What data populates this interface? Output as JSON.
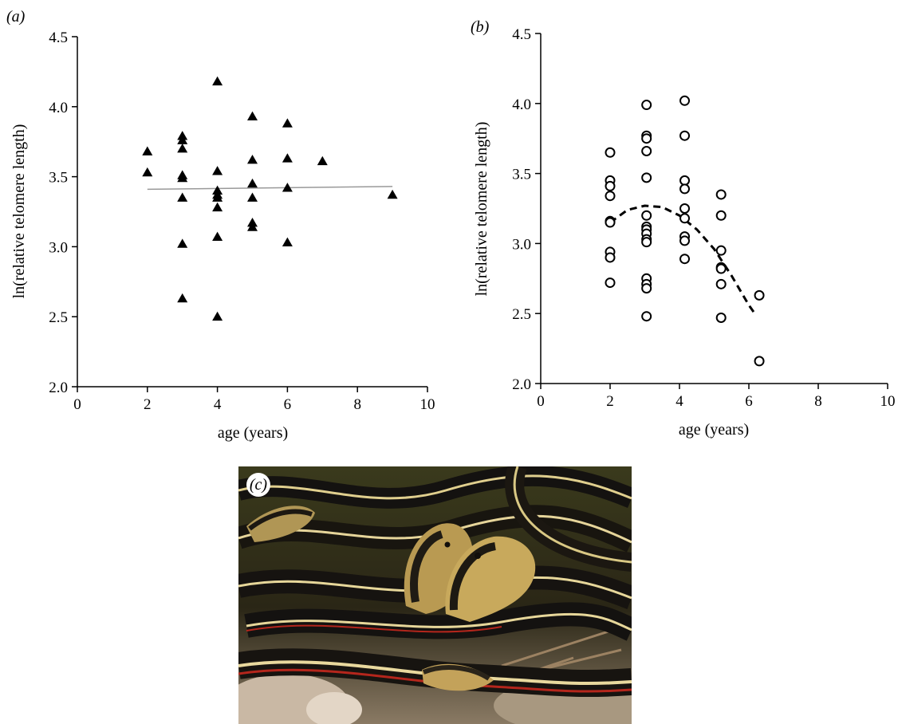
{
  "panels": {
    "a_label": "(a)",
    "b_label": "(b)",
    "c_label": "(c)"
  },
  "photo": {
    "subject": "garter snakes",
    "colors": {
      "body": "#1a1712",
      "stripe": "#e7d79a",
      "side_stripe": "#b4261c",
      "ground": "#c8b7a0"
    }
  },
  "chart_data": [
    {
      "type": "scatter",
      "panel": "a",
      "title": "",
      "xlabel": "age (years)",
      "ylabel": "ln(relative telomere length)",
      "xlim": [
        0,
        10
      ],
      "ylim": [
        2.0,
        4.5
      ],
      "xticks": [
        0,
        2,
        4,
        6,
        8,
        10
      ],
      "yticks": [
        2.0,
        2.5,
        3.0,
        3.5,
        4.0,
        4.5
      ],
      "ytick_labels": [
        "2.0",
        "2.5",
        "3.0",
        "3.5",
        "4.0",
        "4.5"
      ],
      "grid": false,
      "marker": "filled-triangle",
      "points": [
        [
          2,
          3.68
        ],
        [
          2,
          3.53
        ],
        [
          3,
          3.79
        ],
        [
          3,
          3.76
        ],
        [
          3,
          3.7
        ],
        [
          3,
          3.51
        ],
        [
          3,
          3.49
        ],
        [
          3,
          3.35
        ],
        [
          3,
          3.02
        ],
        [
          3,
          2.63
        ],
        [
          4,
          4.18
        ],
        [
          4,
          3.54
        ],
        [
          4,
          3.4
        ],
        [
          4,
          3.37
        ],
        [
          4,
          3.35
        ],
        [
          4,
          3.28
        ],
        [
          4,
          3.07
        ],
        [
          4,
          2.5
        ],
        [
          5,
          3.93
        ],
        [
          5,
          3.62
        ],
        [
          5,
          3.45
        ],
        [
          5,
          3.35
        ],
        [
          5,
          3.17
        ],
        [
          5,
          3.14
        ],
        [
          6,
          3.88
        ],
        [
          6,
          3.63
        ],
        [
          6,
          3.42
        ],
        [
          6,
          3.03
        ],
        [
          7,
          3.61
        ],
        [
          9,
          3.37
        ]
      ],
      "trend": {
        "style": "solid",
        "color": "#999999",
        "x": [
          2,
          9
        ],
        "y": [
          3.41,
          3.43
        ]
      }
    },
    {
      "type": "scatter",
      "panel": "b",
      "title": "",
      "xlabel": "age (years)",
      "ylabel": "ln(relative telomere length)",
      "xlim": [
        0,
        10
      ],
      "ylim": [
        2.0,
        4.5
      ],
      "xticks": [
        0,
        2,
        4,
        6,
        8,
        10
      ],
      "yticks": [
        2.0,
        2.5,
        3.0,
        3.5,
        4.0,
        4.5
      ],
      "ytick_labels": [
        "2.0",
        "2.5",
        "3.0",
        "3.5",
        "4.0",
        "4.5"
      ],
      "grid": false,
      "marker": "open-circle",
      "points": [
        [
          2,
          3.65
        ],
        [
          2,
          3.45
        ],
        [
          2,
          3.41
        ],
        [
          2,
          3.34
        ],
        [
          2,
          3.16
        ],
        [
          2,
          3.15
        ],
        [
          2,
          2.94
        ],
        [
          2,
          2.9
        ],
        [
          2,
          2.72
        ],
        [
          3.05,
          3.99
        ],
        [
          3.05,
          3.77
        ],
        [
          3.05,
          3.75
        ],
        [
          3.05,
          3.66
        ],
        [
          3.05,
          3.47
        ],
        [
          3.05,
          3.2
        ],
        [
          3.05,
          3.12
        ],
        [
          3.05,
          3.1
        ],
        [
          3.05,
          3.07
        ],
        [
          3.05,
          3.03
        ],
        [
          3.05,
          3.01
        ],
        [
          3.05,
          2.75
        ],
        [
          3.05,
          2.71
        ],
        [
          3.05,
          2.68
        ],
        [
          3.05,
          2.48
        ],
        [
          4.15,
          4.02
        ],
        [
          4.15,
          3.77
        ],
        [
          4.15,
          3.45
        ],
        [
          4.15,
          3.39
        ],
        [
          4.15,
          3.25
        ],
        [
          4.15,
          3.18
        ],
        [
          4.15,
          3.05
        ],
        [
          4.15,
          3.02
        ],
        [
          4.15,
          2.89
        ],
        [
          5.2,
          3.35
        ],
        [
          5.2,
          3.2
        ],
        [
          5.2,
          2.95
        ],
        [
          5.2,
          2.83
        ],
        [
          5.2,
          2.82
        ],
        [
          5.2,
          2.71
        ],
        [
          5.2,
          2.47
        ],
        [
          6.3,
          2.63
        ],
        [
          6.3,
          2.16
        ]
      ],
      "trend": {
        "style": "dashed",
        "color": "#000000",
        "x": [
          2.0,
          2.5,
          3.0,
          3.5,
          4.0,
          4.5,
          5.0,
          5.5,
          6.0,
          6.2
        ],
        "y": [
          3.15,
          3.24,
          3.27,
          3.26,
          3.2,
          3.1,
          2.96,
          2.77,
          2.56,
          2.49
        ]
      }
    }
  ]
}
